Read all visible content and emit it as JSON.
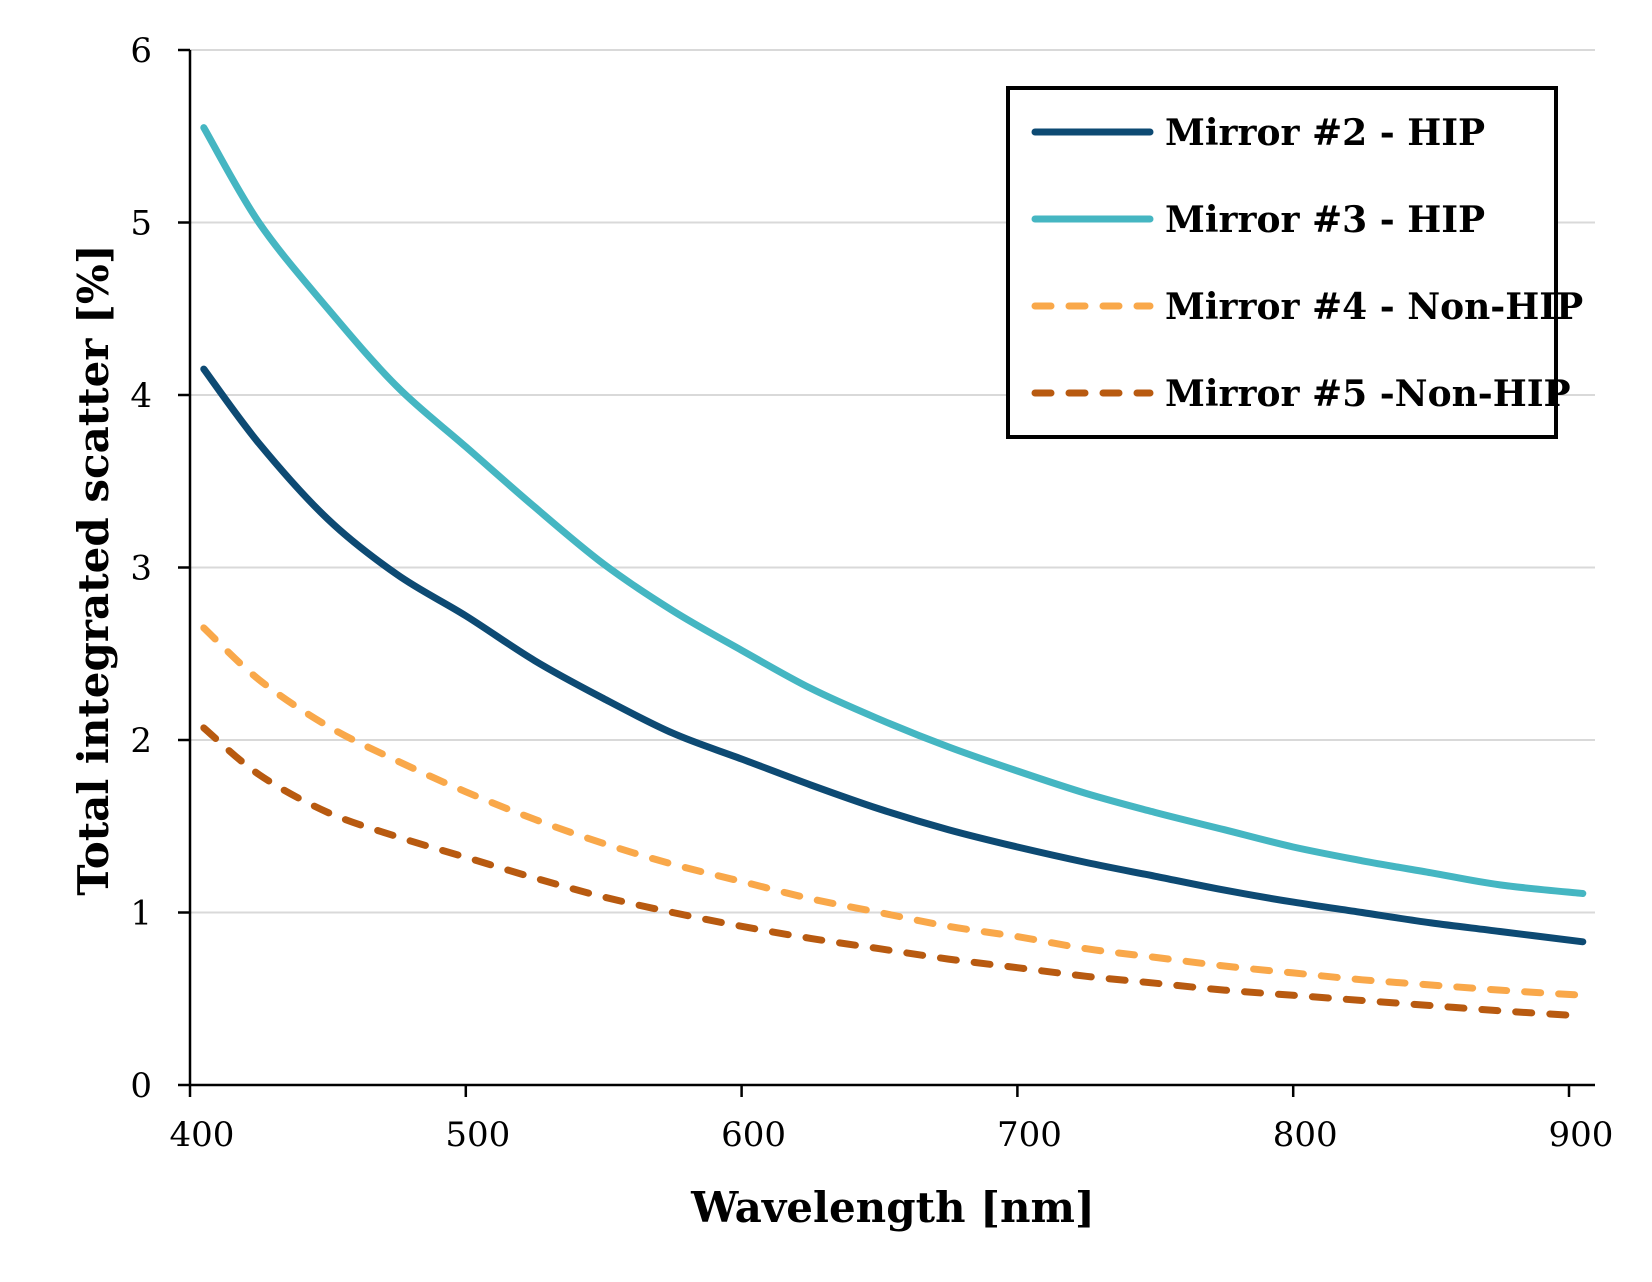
{
  "chart_data": {
    "type": "line",
    "xlabel": "Wavelength [nm]",
    "ylabel": "Total integrated scatter [%]",
    "xlim": [
      400,
      900
    ],
    "ylim": [
      0,
      6
    ],
    "xticks": [
      400,
      500,
      600,
      700,
      800,
      900
    ],
    "yticks": [
      0,
      1,
      2,
      3,
      4,
      5,
      6
    ],
    "grid": "horizontal",
    "legend_position": "top-right",
    "x": [
      405,
      425,
      450,
      475,
      500,
      525,
      550,
      575,
      600,
      625,
      650,
      675,
      700,
      725,
      750,
      775,
      800,
      825,
      850,
      875,
      905
    ],
    "series": [
      {
        "name": "Mirror #2 - HIP",
        "color": "#0d4a73",
        "dash": "solid",
        "values": [
          4.15,
          3.72,
          3.28,
          2.96,
          2.72,
          2.46,
          2.24,
          2.04,
          1.89,
          1.74,
          1.6,
          1.48,
          1.38,
          1.29,
          1.21,
          1.13,
          1.06,
          1.0,
          0.94,
          0.89,
          0.83
        ]
      },
      {
        "name": "Mirror #3 - HIP",
        "color": "#45b6c2",
        "dash": "solid",
        "values": [
          5.55,
          5.0,
          4.5,
          4.05,
          3.7,
          3.35,
          3.02,
          2.75,
          2.52,
          2.3,
          2.12,
          1.96,
          1.82,
          1.69,
          1.58,
          1.48,
          1.38,
          1.3,
          1.23,
          1.16,
          1.11
        ]
      },
      {
        "name": "Mirror #4 - Non-HIP",
        "color": "#f9a84a",
        "dash": "dashed",
        "values": [
          2.65,
          2.35,
          2.08,
          1.88,
          1.7,
          1.54,
          1.4,
          1.28,
          1.18,
          1.08,
          1.0,
          0.92,
          0.86,
          0.79,
          0.74,
          0.69,
          0.65,
          0.61,
          0.58,
          0.55,
          0.52
        ]
      },
      {
        "name": "Mirror #5 -Non-HIP",
        "color": "#b85a10",
        "dash": "dashed",
        "values": [
          2.07,
          1.8,
          1.58,
          1.44,
          1.32,
          1.2,
          1.09,
          1.0,
          0.92,
          0.85,
          0.79,
          0.73,
          0.68,
          0.63,
          0.59,
          0.55,
          0.52,
          0.49,
          0.46,
          0.43,
          0.4
        ]
      }
    ]
  }
}
